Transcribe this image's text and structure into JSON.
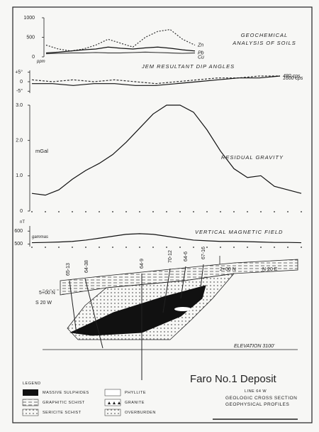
{
  "chart_data": [
    {
      "type": "line",
      "title": "GEOCHEMICAL ANALYSIS OF SOILS",
      "ylabel": "ppm",
      "ylim": [
        0,
        1000
      ],
      "yticks": [
        0,
        500,
        1000
      ],
      "categories": [
        null,
        null,
        null,
        null,
        null,
        null,
        null,
        null,
        null,
        null,
        null,
        null,
        null
      ],
      "series": [
        {
          "name": "Zn",
          "color": "#333",
          "dash": "2,2",
          "values": [
            300,
            200,
            150,
            200,
            300,
            450,
            350,
            250,
            500,
            650,
            700,
            450,
            300
          ]
        },
        {
          "name": "Pb",
          "color": "#111",
          "dash": "",
          "values": [
            100,
            120,
            150,
            180,
            200,
            250,
            220,
            200,
            230,
            250,
            220,
            180,
            150
          ]
        },
        {
          "name": "Cu",
          "color": "#444",
          "dash": "",
          "values": [
            80,
            90,
            100,
            100,
            110,
            100,
            100,
            110,
            120,
            110,
            100,
            90,
            100
          ]
        }
      ]
    },
    {
      "type": "line",
      "title": "JEM RESULTANT DIP ANGLES",
      "ylim": [
        -6,
        6
      ],
      "yticks": [
        {
          "value": 5,
          "label": "+5°"
        },
        0,
        {
          "value": -5,
          "label": "-5°"
        }
      ],
      "categories": [
        null,
        null,
        null,
        null,
        null,
        null,
        null,
        null,
        null,
        null,
        null,
        null,
        null
      ],
      "series": [
        {
          "name": "480 cps",
          "color": "#333",
          "dash": "3,2",
          "values": [
            1,
            0,
            1,
            0,
            1,
            0,
            -1,
            0,
            1,
            2,
            2,
            3,
            3
          ]
        },
        {
          "name": "1600 cps",
          "color": "#111",
          "dash": "",
          "values": [
            -1,
            -1,
            -2,
            -1,
            -1,
            -2,
            -2,
            -1,
            0,
            1,
            2,
            2,
            3
          ]
        }
      ]
    },
    {
      "type": "line",
      "title": "RESIDUAL GRAVITY",
      "ylabel": "mGal",
      "ylim": [
        0,
        3
      ],
      "yticks": [
        0,
        {
          "value": 1,
          "label": "1.0"
        },
        {
          "value": 2,
          "label": "2.0"
        },
        {
          "value": 3,
          "label": "3.0"
        }
      ],
      "categories": [
        null,
        null,
        null,
        null,
        null,
        null,
        null,
        null,
        null,
        null,
        null,
        null,
        null,
        null,
        null,
        null,
        null,
        null,
        null,
        null,
        null
      ],
      "series": [
        {
          "name": null,
          "color": "#111",
          "dash": "",
          "values": [
            0.5,
            0.45,
            0.6,
            0.9,
            1.15,
            1.35,
            1.6,
            1.95,
            2.35,
            2.75,
            3.0,
            3.0,
            2.8,
            2.3,
            1.7,
            1.2,
            0.95,
            1.0,
            0.7,
            0.6,
            0.5
          ]
        }
      ]
    },
    {
      "type": "line",
      "title": "VERTICAL MAGNETIC FIELD",
      "ylabel": "nT",
      "ylabel2": "gammas",
      "ylim": [
        480,
        640
      ],
      "yticks": [
        500,
        600
      ],
      "categories": [
        null,
        null,
        null,
        null,
        null,
        null,
        null,
        null,
        null,
        null,
        null,
        null,
        null,
        null,
        null,
        null,
        null,
        null,
        null,
        null,
        null
      ],
      "series": [
        {
          "name": null,
          "color": "#111",
          "dash": "",
          "values": [
            510,
            512,
            515,
            520,
            530,
            545,
            560,
            575,
            580,
            575,
            560,
            545,
            530,
            525,
            520,
            520,
            518,
            515,
            512,
            512,
            510
          ]
        }
      ]
    }
  ],
  "section": {
    "holes": [
      "65-13",
      "64-38",
      "64-9",
      "70-12",
      "64-6",
      "67-16"
    ],
    "north": "N 20 E",
    "south": "S 20 W",
    "station": "5+00 N",
    "station2": "2+00 N",
    "elevation": "ELEVATION 3100'"
  },
  "legend": {
    "title": "LEGEND",
    "items": [
      "MASSIVE SULPHIDES",
      "GRAPHITIC SCHIST",
      "SERICITE SCHIST",
      "PHYLLITE",
      "GRANITE",
      "OVERBURDEN"
    ]
  },
  "caption": {
    "title": "Faro No.1 Deposit",
    "line": "LINE 64 W",
    "sub1": "GEOLOGIC CROSS SECTION",
    "sub2": "GEOPHYSICAL PROFILES"
  }
}
